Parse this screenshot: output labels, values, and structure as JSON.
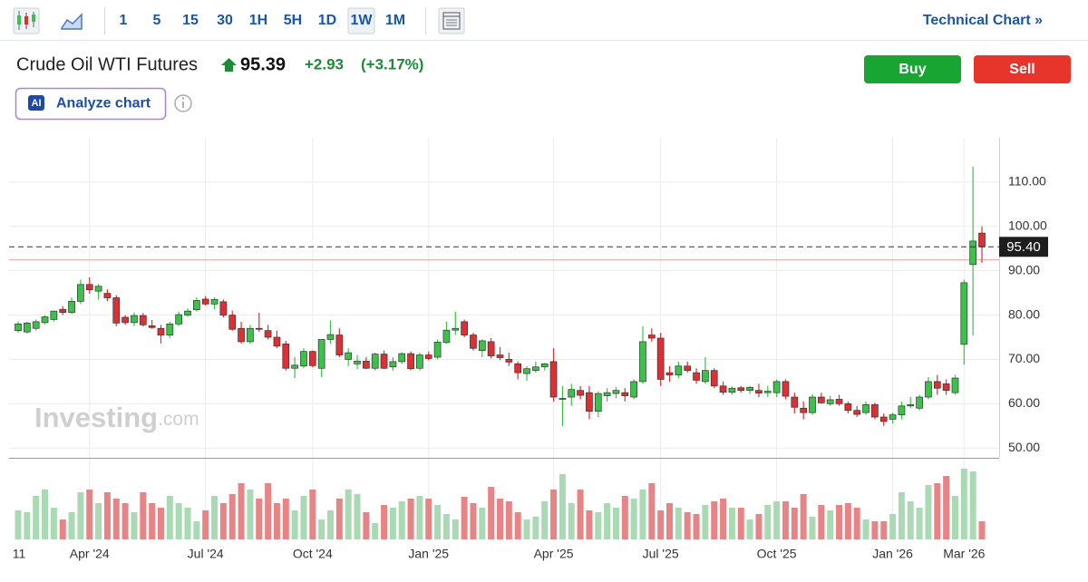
{
  "toolbar": {
    "intervals": [
      "1",
      "5",
      "15",
      "30",
      "1H",
      "5H",
      "1D",
      "1W",
      "1M"
    ],
    "selected": 7,
    "technical_chart": "Technical Chart »"
  },
  "header": {
    "title": "Crude Oil WTI Futures",
    "price": "95.39",
    "change": "+2.93",
    "change_percent": "(+3.17%)",
    "buy": "Buy",
    "sell": "Sell",
    "ai_badge": "AI",
    "analyze": "Analyze chart"
  },
  "chart_data": {
    "type": "candlestick",
    "watermark": "Investing",
    "watermark_suffix": ".com",
    "ylim": [
      47.8,
      120
    ],
    "yticks": [
      {
        "value": 50,
        "label": "50.00"
      },
      {
        "value": 60,
        "label": "60.00"
      },
      {
        "value": 70,
        "label": "70.00"
      },
      {
        "value": 80,
        "label": "80.00"
      },
      {
        "value": 90,
        "label": "90.00"
      },
      {
        "value": 100,
        "label": "100.00"
      },
      {
        "value": 110,
        "label": "110.00"
      }
    ],
    "grid": true,
    "up_color": "#3cc24a",
    "down_color": "#dc3035",
    "volume_up_color": "#a9dab3",
    "volume_down_color": "#e98486",
    "last_price": {
      "value": 95.4,
      "label": "95.40"
    },
    "previous_close_line": 92.46,
    "categories": [
      "11",
      null,
      null,
      null,
      null,
      null,
      null,
      null,
      "Apr '24",
      null,
      null,
      null,
      null,
      null,
      null,
      null,
      null,
      null,
      null,
      null,
      null,
      "Jul '24",
      null,
      null,
      null,
      null,
      null,
      null,
      null,
      null,
      null,
      null,
      null,
      "Oct '24",
      null,
      null,
      null,
      null,
      null,
      null,
      null,
      null,
      null,
      null,
      null,
      null,
      "Jan '25",
      null,
      null,
      null,
      null,
      null,
      null,
      null,
      null,
      null,
      null,
      null,
      null,
      null,
      "Apr '25",
      null,
      null,
      null,
      null,
      null,
      null,
      null,
      null,
      null,
      null,
      null,
      "Jul '25",
      null,
      null,
      null,
      null,
      null,
      null,
      null,
      null,
      null,
      null,
      null,
      null,
      "Oct '25",
      null,
      null,
      null,
      null,
      null,
      null,
      null,
      null,
      null,
      null,
      null,
      null,
      "Jan '26",
      null,
      null,
      null,
      null,
      null,
      null,
      null,
      "Mar '26",
      null,
      null
    ],
    "ohlc": [
      [
        76.5,
        78.6,
        76.0,
        78.0
      ],
      [
        76.2,
        78.5,
        75.8,
        78.2
      ],
      [
        77.0,
        79.0,
        76.5,
        78.5
      ],
      [
        78.3,
        80.0,
        77.8,
        79.6
      ],
      [
        79.0,
        81.0,
        78.5,
        80.9
      ],
      [
        81.3,
        82.0,
        80.0,
        80.6
      ],
      [
        80.6,
        84.0,
        80.2,
        83.1
      ],
      [
        83.1,
        88.0,
        82.5,
        86.9
      ],
      [
        86.9,
        88.5,
        84.8,
        85.7
      ],
      [
        85.4,
        87.0,
        83.5,
        86.5
      ],
      [
        84.9,
        85.8,
        83.2,
        83.9
      ],
      [
        83.9,
        84.5,
        77.5,
        78.2
      ],
      [
        79.5,
        80.0,
        77.8,
        78.3
      ],
      [
        78.3,
        80.6,
        77.5,
        79.9
      ],
      [
        79.9,
        80.5,
        77.4,
        77.8
      ],
      [
        77.6,
        78.9,
        76.9,
        77.2
      ],
      [
        77.0,
        77.8,
        73.6,
        75.5
      ],
      [
        75.5,
        78.5,
        74.8,
        78.0
      ],
      [
        78.0,
        80.8,
        77.5,
        80.1
      ],
      [
        80.0,
        81.5,
        79.6,
        80.9
      ],
      [
        81.2,
        84.0,
        80.8,
        83.3
      ],
      [
        83.6,
        84.3,
        82.2,
        82.5
      ],
      [
        82.5,
        84.0,
        81.3,
        83.5
      ],
      [
        83.0,
        83.5,
        79.5,
        80.0
      ],
      [
        80.0,
        81.0,
        76.5,
        76.8
      ],
      [
        77.0,
        78.5,
        73.6,
        74.0
      ],
      [
        74.0,
        77.8,
        73.5,
        77.0
      ],
      [
        77.0,
        80.5,
        76.2,
        76.8
      ],
      [
        76.5,
        77.8,
        74.5,
        75.0
      ],
      [
        75.0,
        76.5,
        72.5,
        73.0
      ],
      [
        73.5,
        74.2,
        67.5,
        68.0
      ],
      [
        68.0,
        70.5,
        65.8,
        68.7
      ],
      [
        68.5,
        72.5,
        68.0,
        71.8
      ],
      [
        71.8,
        72.0,
        68.2,
        68.6
      ],
      [
        68.0,
        74.5,
        66.0,
        74.5
      ],
      [
        74.5,
        78.8,
        73.5,
        75.6
      ],
      [
        75.5,
        77.0,
        70.5,
        71.0
      ],
      [
        70.0,
        72.5,
        68.5,
        71.5
      ],
      [
        69.0,
        71.0,
        67.8,
        69.6
      ],
      [
        69.6,
        70.5,
        67.8,
        68.0
      ],
      [
        68.0,
        71.5,
        67.5,
        71.2
      ],
      [
        71.2,
        72.0,
        67.8,
        68.0
      ],
      [
        68.3,
        70.5,
        67.5,
        69.5
      ],
      [
        69.5,
        71.6,
        69.0,
        71.3
      ],
      [
        71.3,
        71.8,
        67.5,
        67.9
      ],
      [
        68.0,
        71.5,
        67.5,
        71.0
      ],
      [
        71.0,
        71.8,
        69.8,
        70.2
      ],
      [
        70.5,
        74.5,
        70.0,
        73.9
      ],
      [
        73.8,
        78.5,
        73.5,
        76.6
      ],
      [
        76.6,
        80.8,
        75.5,
        77.0
      ],
      [
        78.5,
        79.0,
        75.0,
        75.5
      ],
      [
        75.5,
        76.0,
        72.0,
        72.5
      ],
      [
        72.0,
        74.5,
        70.5,
        74.2
      ],
      [
        74.0,
        74.8,
        70.2,
        70.8
      ],
      [
        71.0,
        72.8,
        69.8,
        70.4
      ],
      [
        70.0,
        71.5,
        68.5,
        69.4
      ],
      [
        69.0,
        69.5,
        65.5,
        67.0
      ],
      [
        66.8,
        68.5,
        65.2,
        67.9
      ],
      [
        67.5,
        69.5,
        67.0,
        68.3
      ],
      [
        68.3,
        69.2,
        67.5,
        69.0
      ],
      [
        69.5,
        72.5,
        60.5,
        61.5
      ],
      [
        61.0,
        64.0,
        55.0,
        61.2
      ],
      [
        61.5,
        64.5,
        59.5,
        63.2
      ],
      [
        63.0,
        64.0,
        61.0,
        61.9
      ],
      [
        62.5,
        64.0,
        56.5,
        58.3
      ],
      [
        58.3,
        62.8,
        57.0,
        62.3
      ],
      [
        61.8,
        63.5,
        60.5,
        62.5
      ],
      [
        62.3,
        63.8,
        61.2,
        63.0
      ],
      [
        62.5,
        63.5,
        60.5,
        61.8
      ],
      [
        61.5,
        65.5,
        61.0,
        65.0
      ],
      [
        65.0,
        77.5,
        64.5,
        74.0
      ],
      [
        75.5,
        77.0,
        74.0,
        74.8
      ],
      [
        74.8,
        76.0,
        64.0,
        65.5
      ],
      [
        67.0,
        68.5,
        65.0,
        66.5
      ],
      [
        66.5,
        69.5,
        65.8,
        68.5
      ],
      [
        68.5,
        69.5,
        67.0,
        67.5
      ],
      [
        67.0,
        68.0,
        64.5,
        65.3
      ],
      [
        65.0,
        70.5,
        64.5,
        67.5
      ],
      [
        67.5,
        68.0,
        63.5,
        64.0
      ],
      [
        64.0,
        65.0,
        62.0,
        62.6
      ],
      [
        62.6,
        64.0,
        62.0,
        63.5
      ],
      [
        63.6,
        64.0,
        62.5,
        63.0
      ],
      [
        63.0,
        64.0,
        62.2,
        63.7
      ],
      [
        63.0,
        64.5,
        61.5,
        62.4
      ],
      [
        62.5,
        64.0,
        61.5,
        62.8
      ],
      [
        62.5,
        65.5,
        61.5,
        65.0
      ],
      [
        65.0,
        65.5,
        61.0,
        61.7
      ],
      [
        61.5,
        62.5,
        57.8,
        59.2
      ],
      [
        59.0,
        60.5,
        56.5,
        58.0
      ],
      [
        58.0,
        62.2,
        57.5,
        61.5
      ],
      [
        61.5,
        62.5,
        60.0,
        60.2
      ],
      [
        60.0,
        61.8,
        59.5,
        60.9
      ],
      [
        61.0,
        62.0,
        59.5,
        60.0
      ],
      [
        60.0,
        60.5,
        57.8,
        58.5
      ],
      [
        58.5,
        59.5,
        57.0,
        57.6
      ],
      [
        58.0,
        60.5,
        57.5,
        59.8
      ],
      [
        59.8,
        60.2,
        56.5,
        57.0
      ],
      [
        57.0,
        57.8,
        55.0,
        56.0
      ],
      [
        56.5,
        58.0,
        55.5,
        57.5
      ],
      [
        57.5,
        60.5,
        56.5,
        59.5
      ],
      [
        59.5,
        61.5,
        59.0,
        59.8
      ],
      [
        59.0,
        62.0,
        58.5,
        61.5
      ],
      [
        61.5,
        66.0,
        61.0,
        65.0
      ],
      [
        65.0,
        66.5,
        62.0,
        63.5
      ],
      [
        64.5,
        65.5,
        62.0,
        63.0
      ],
      [
        62.5,
        66.5,
        62.0,
        65.8
      ],
      [
        73.4,
        88.0,
        68.8,
        87.3
      ],
      [
        91.4,
        113.5,
        75.4,
        96.7
      ],
      [
        98.5,
        100.0,
        91.8,
        95.4
      ]
    ],
    "volume": [
      32,
      30,
      48,
      55,
      35,
      22,
      30,
      52,
      55,
      40,
      52,
      45,
      40,
      30,
      52,
      40,
      35,
      48,
      40,
      35,
      20,
      32,
      48,
      40,
      50,
      62,
      55,
      45,
      62,
      40,
      45,
      32,
      48,
      55,
      22,
      32,
      45,
      55,
      50,
      30,
      18,
      38,
      35,
      42,
      45,
      48,
      45,
      38,
      28,
      22,
      47,
      40,
      35,
      58,
      45,
      42,
      30,
      22,
      25,
      42,
      55,
      72,
      40,
      55,
      32,
      30,
      40,
      35,
      48,
      45,
      55,
      62,
      32,
      40,
      35,
      30,
      28,
      38,
      42,
      45,
      35,
      35,
      22,
      28,
      38,
      42,
      42,
      35,
      50,
      25,
      38,
      32,
      38,
      40,
      35,
      22,
      20,
      20,
      28,
      52,
      42,
      35,
      60,
      62,
      70,
      48,
      78,
      75,
      20
    ]
  }
}
